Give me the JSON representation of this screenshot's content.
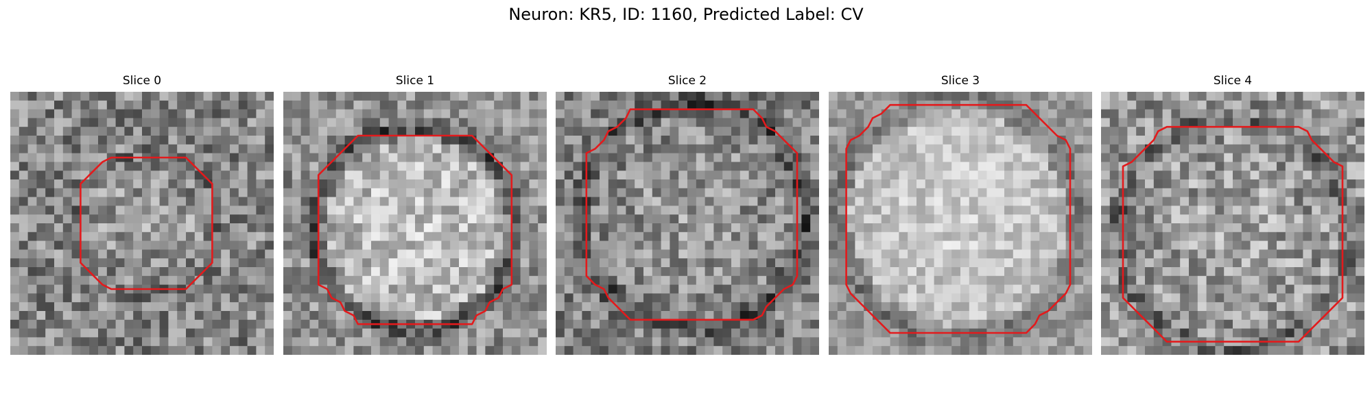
{
  "figure": {
    "title": "Neuron: KR5, ID: 1160, Predicted Label: CV"
  },
  "colors": {
    "contour": "#e31a1c",
    "background": "#ffffff"
  },
  "panels": [
    {
      "title": "Slice 0",
      "description": "grayscale noisy microscopy slice with a small red octagonal ROI contour"
    },
    {
      "title": "Slice 1",
      "description": "grayscale slice with bright cell body and red ROI contour"
    },
    {
      "title": "Slice 2",
      "description": "grayscale slice with large red ROI contour"
    },
    {
      "title": "Slice 3",
      "description": "bright grayscale slice with large red ROI contour"
    },
    {
      "title": "Slice 4",
      "description": "grayscale noisy slice with large red ROI contour"
    }
  ]
}
